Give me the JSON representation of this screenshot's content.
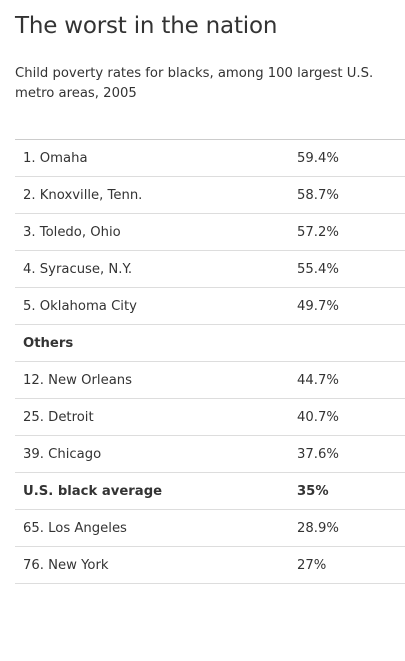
{
  "chart_data": {
    "type": "table",
    "title": "The worst in the nation",
    "subtitle": "Child poverty rates for blacks, among 100 largest U.S. metro areas, 2005",
    "rows": [
      {
        "label": "1. Omaha",
        "value": "59.4%",
        "bold": false
      },
      {
        "label": "2. Knoxville, Tenn.",
        "value": "58.7%",
        "bold": false
      },
      {
        "label": "3. Toledo, Ohio",
        "value": "57.2%",
        "bold": false
      },
      {
        "label": "4. Syracuse, N.Y.",
        "value": "55.4%",
        "bold": false
      },
      {
        "label": "5. Oklahoma City",
        "value": "49.7%",
        "bold": false
      },
      {
        "label": "Others",
        "value": "",
        "bold": true
      },
      {
        "label": "12. New Orleans",
        "value": "44.7%",
        "bold": false
      },
      {
        "label": "25. Detroit",
        "value": "40.7%",
        "bold": false
      },
      {
        "label": "39. Chicago",
        "value": "37.6%",
        "bold": false
      },
      {
        "label": "U.S. black average",
        "value": "35%",
        "bold": true
      },
      {
        "label": "65. Los Angeles",
        "value": "28.9%",
        "bold": false
      },
      {
        "label": "76. New York",
        "value": "27%",
        "bold": false
      }
    ]
  }
}
